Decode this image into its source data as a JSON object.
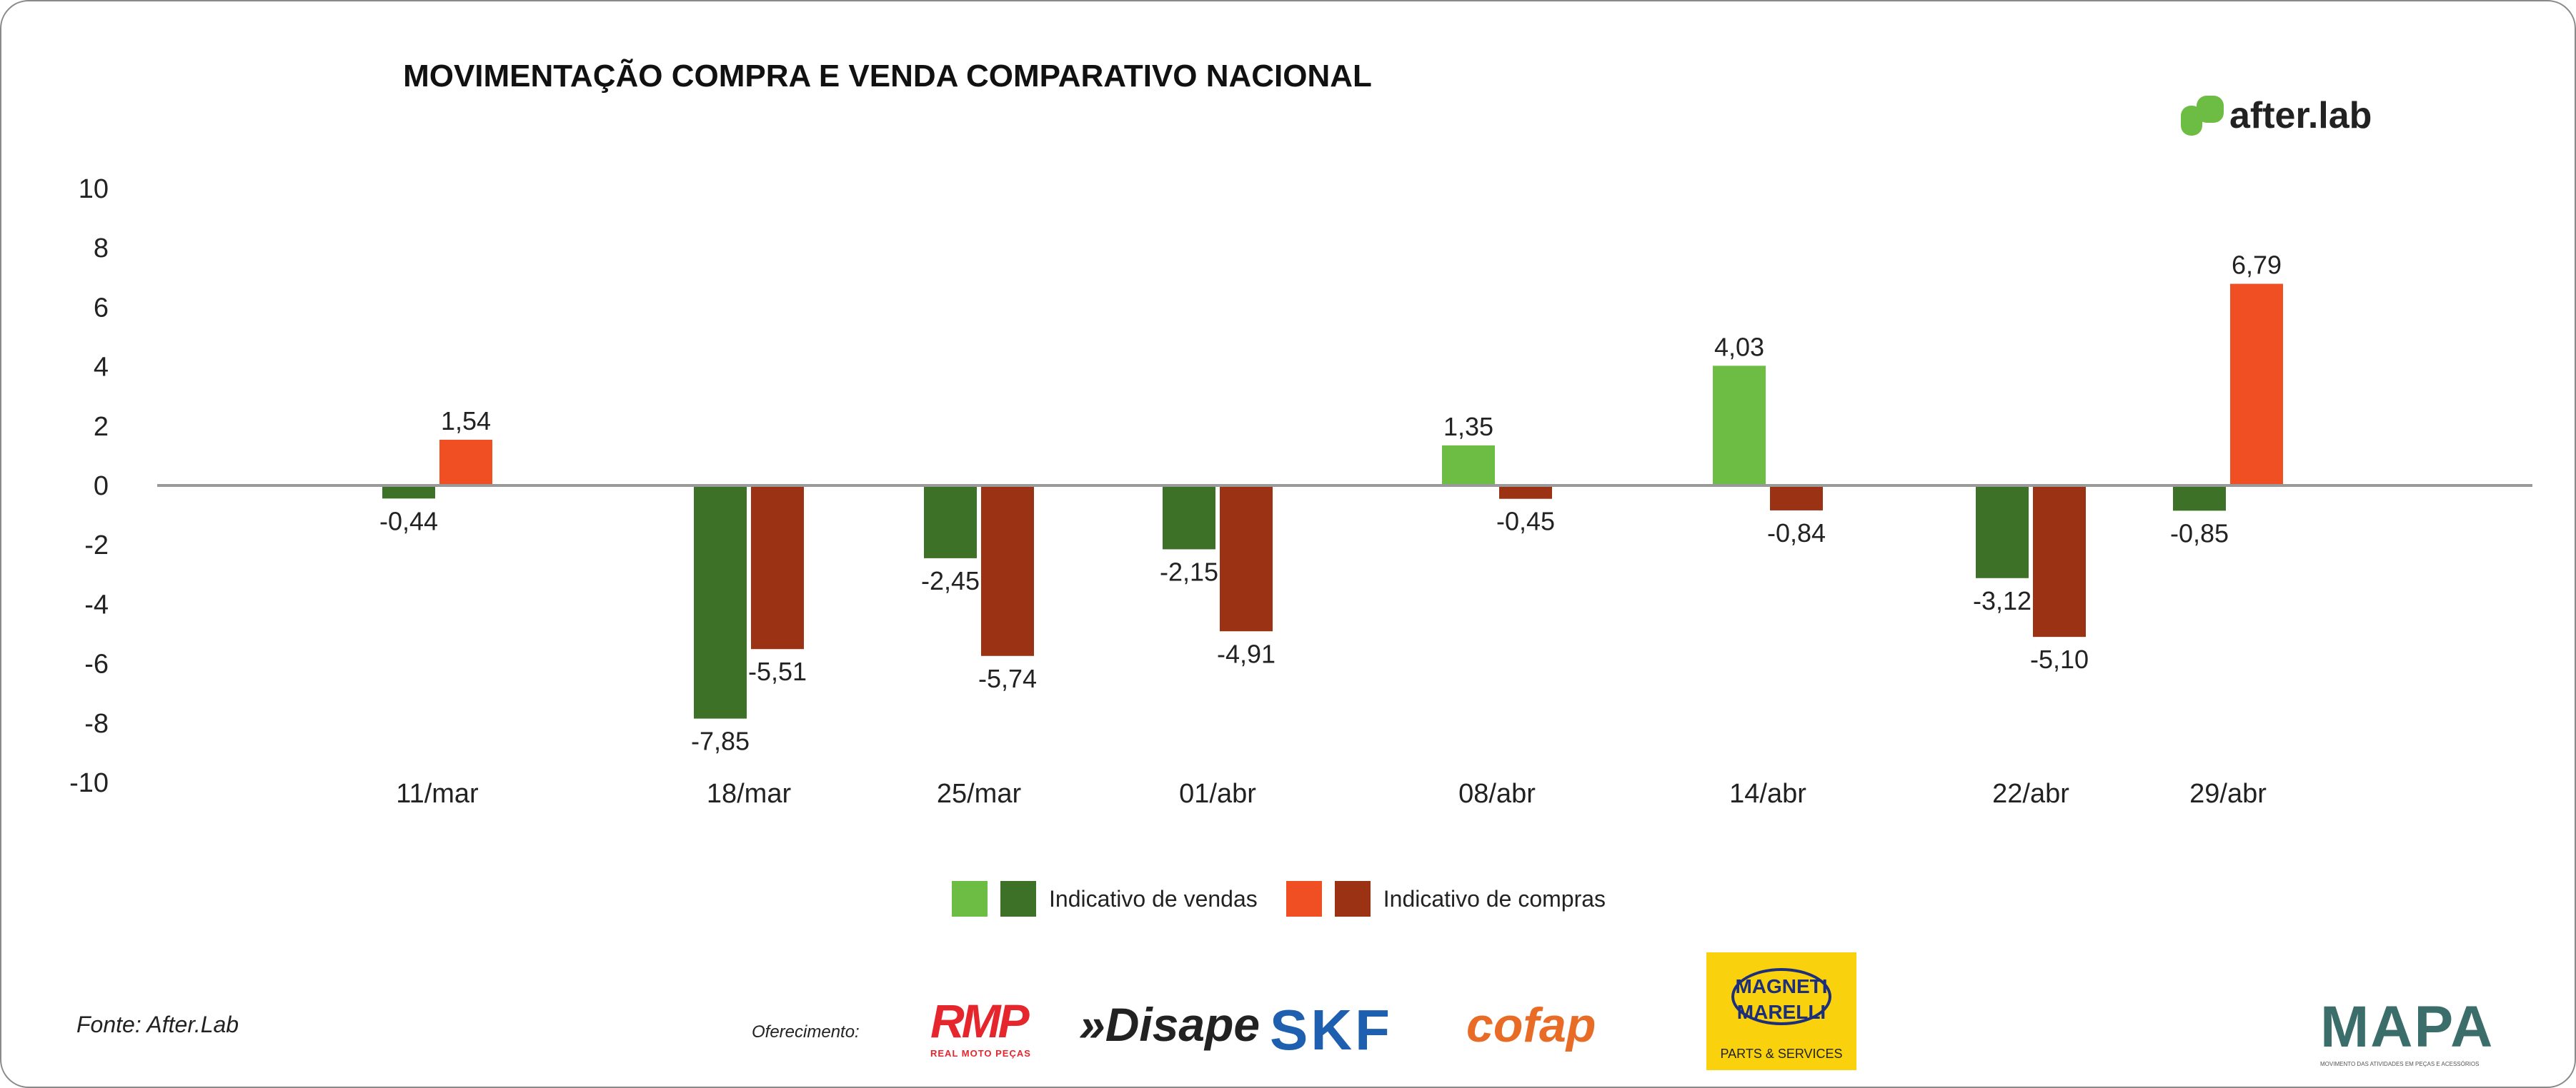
{
  "chart_data": {
    "type": "bar",
    "title": "MOVIMENTAÇÃO COMPRA E VENDA COMPARATIVO NACIONAL",
    "categories": [
      "11/mar",
      "18/mar",
      "25/mar",
      "01/abr",
      "08/abr",
      "14/abr",
      "22/abr",
      "29/abr"
    ],
    "series": [
      {
        "name": "Indicativo de vendas",
        "values": [
          -0.44,
          -7.85,
          -2.45,
          -2.15,
          1.35,
          4.03,
          -3.12,
          -0.85
        ],
        "labels": [
          "-0,44",
          "-7,85",
          "-2,45",
          "-2,15",
          "1,35",
          "4,03",
          "-3,12",
          "-0,85"
        ],
        "color_positive": "#6dbd45",
        "color_negative": "#3c7127"
      },
      {
        "name": "Indicativo de compras",
        "values": [
          1.54,
          -5.51,
          -5.74,
          -4.91,
          -0.45,
          -0.84,
          -5.1,
          6.79
        ],
        "labels": [
          "1,54",
          "-5,51",
          "-5,74",
          "-4,91",
          "-0,45",
          "-0,84",
          "-5,10",
          "6,79"
        ],
        "color_positive": "#f04e23",
        "color_negative": "#9c3214"
      }
    ],
    "ylim": [
      -10,
      10
    ],
    "yticks": [
      "10",
      "8",
      "6",
      "4",
      "2",
      "0",
      "-2",
      "-4",
      "-6",
      "-8",
      "-10"
    ],
    "grid": false,
    "legend": "bottom"
  },
  "brand": "after.lab",
  "footer": {
    "source": "Fonte: After.Lab",
    "sponsor_label": "Oferecimento:",
    "logos": {
      "rmp": "RMP",
      "rmp_sub": "REAL MOTO PEÇAS",
      "disape": "»Disape",
      "skf": "SKF",
      "cofap": "cofap",
      "mm": "MAGNETI MARELLI",
      "mm_sub": "PARTS & SERVICES",
      "mapa": "MAPA",
      "mapa_sub": "MOVIMENTO DAS ATIVIDADES EM PEÇAS E ACESSÓRIOS"
    }
  }
}
